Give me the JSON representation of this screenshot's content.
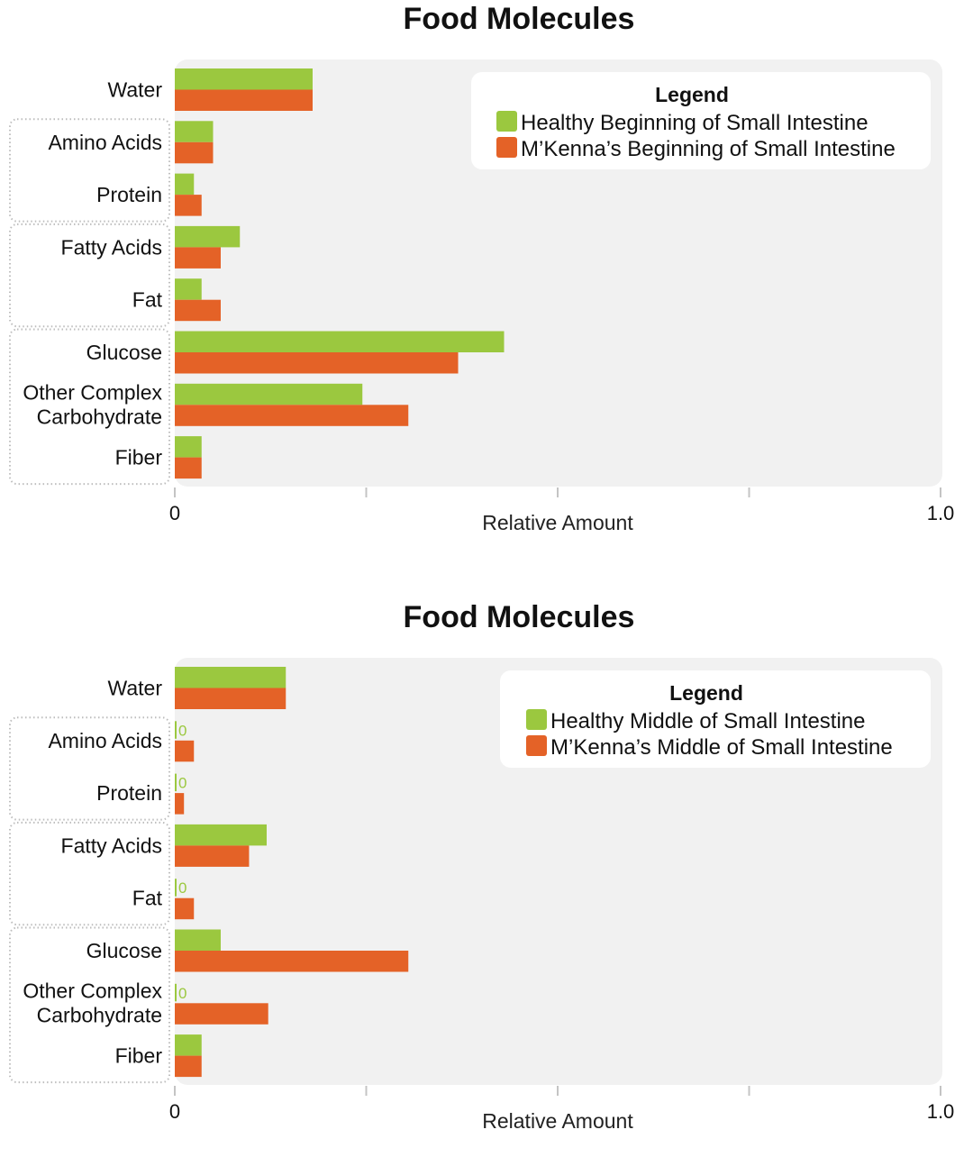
{
  "chart_data": [
    {
      "type": "bar",
      "orientation": "horizontal",
      "title": "Food Molecules",
      "xlabel": "Relative Amount",
      "ylabel": "",
      "xlim": [
        0,
        1.0
      ],
      "x_tick_labels": [
        "0",
        "",
        "",
        "",
        "1.0"
      ],
      "x_ticks": [
        0,
        0.25,
        0.5,
        0.75,
        1.0
      ],
      "grid": false,
      "legend": {
        "title": "Legend",
        "placement": "top-right"
      },
      "categories": [
        "Water",
        "Amino Acids",
        "Protein",
        "Fatty Acids",
        "Fat",
        "Glucose",
        "Other Complex Carbohydrate",
        "Fiber"
      ],
      "category_lines": [
        [
          "Water"
        ],
        [
          "Amino Acids"
        ],
        [
          "Protein"
        ],
        [
          "Fatty Acids"
        ],
        [
          "Fat"
        ],
        [
          "Glucose"
        ],
        [
          "Other Complex",
          "Carbohydrate"
        ],
        [
          "Fiber"
        ]
      ],
      "groups": [
        [
          "Amino Acids",
          "Protein"
        ],
        [
          "Fatty Acids",
          "Fat"
        ],
        [
          "Glucose",
          "Other Complex Carbohydrate",
          "Fiber"
        ]
      ],
      "series": [
        {
          "name": "Healthy Beginning of Small Intestine",
          "color": "#9bc83f",
          "values": [
            0.18,
            0.05,
            0.025,
            0.085,
            0.035,
            0.43,
            0.245,
            0.035
          ]
        },
        {
          "name": "M’Kenna’s Beginning of Small Intestine",
          "color": "#e46227",
          "values": [
            0.18,
            0.05,
            0.035,
            0.06,
            0.06,
            0.37,
            0.305,
            0.035
          ]
        }
      ]
    },
    {
      "type": "bar",
      "orientation": "horizontal",
      "title": "Food Molecules",
      "xlabel": "Relative Amount",
      "ylabel": "",
      "xlim": [
        0,
        1.0
      ],
      "x_tick_labels": [
        "0",
        "",
        "",
        "",
        "1.0"
      ],
      "x_ticks": [
        0,
        0.25,
        0.5,
        0.75,
        1.0
      ],
      "grid": false,
      "legend": {
        "title": "Legend",
        "placement": "top-right"
      },
      "categories": [
        "Water",
        "Amino Acids",
        "Protein",
        "Fatty Acids",
        "Fat",
        "Glucose",
        "Other Complex Carbohydrate",
        "Fiber"
      ],
      "category_lines": [
        [
          "Water"
        ],
        [
          "Amino Acids"
        ],
        [
          "Protein"
        ],
        [
          "Fatty Acids"
        ],
        [
          "Fat"
        ],
        [
          "Glucose"
        ],
        [
          "Other Complex",
          "Carbohydrate"
        ],
        [
          "Fiber"
        ]
      ],
      "groups": [
        [
          "Amino Acids",
          "Protein"
        ],
        [
          "Fatty Acids",
          "Fat"
        ],
        [
          "Glucose",
          "Other Complex Carbohydrate",
          "Fiber"
        ]
      ],
      "zero_value_label": "0",
      "series": [
        {
          "name": "Healthy Middle of Small Intestine",
          "color": "#9bc83f",
          "values": [
            0.145,
            0,
            0,
            0.12,
            0,
            0.06,
            0,
            0.035
          ]
        },
        {
          "name": "M’Kenna’s Middle of Small Intestine",
          "color": "#e46227",
          "values": [
            0.145,
            0.025,
            0.012,
            0.097,
            0.025,
            0.305,
            0.122,
            0.035
          ]
        }
      ]
    }
  ],
  "style": {
    "plot_background": "#f1f1f1",
    "legend_background": "#ffffff",
    "group_border": "#bdbdbd",
    "tick_color": "#c4c4c4"
  }
}
